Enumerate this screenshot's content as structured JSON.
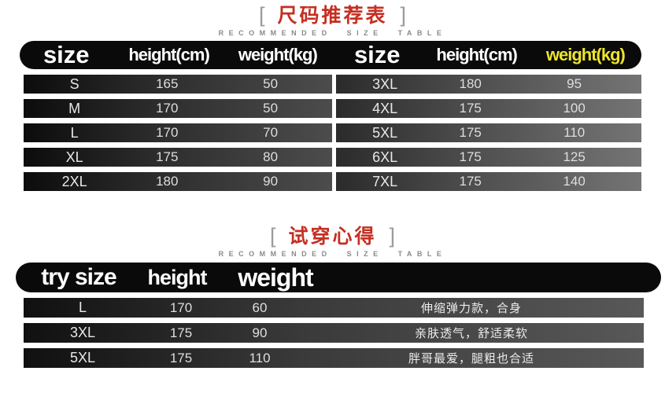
{
  "colors": {
    "accent_red": "#c52f22",
    "accent_yellow": "#ece32c",
    "band_black": "#0a0a0a",
    "subtitle_gray": "#8a8a8a"
  },
  "table1": {
    "bracket_left": "[",
    "bracket_right": "]",
    "title": "尺码推荐表",
    "subtitle": "RECOMMENDED SIZE TABLE",
    "header_left": {
      "size": "size",
      "height": "height(cm)",
      "weight": "weight(kg)"
    },
    "header_right": {
      "size": "size",
      "height": "height(cm)",
      "weight": "weight(kg)"
    },
    "rows_left": [
      {
        "size": "S",
        "height": "165",
        "weight": "50"
      },
      {
        "size": "M",
        "height": "170",
        "weight": "50"
      },
      {
        "size": "L",
        "height": "170",
        "weight": "70"
      },
      {
        "size": "XL",
        "height": "175",
        "weight": "80"
      },
      {
        "size": "2XL",
        "height": "180",
        "weight": "90"
      }
    ],
    "rows_right": [
      {
        "size": "3XL",
        "height": "180",
        "weight": "95"
      },
      {
        "size": "4XL",
        "height": "175",
        "weight": "100"
      },
      {
        "size": "5XL",
        "height": "175",
        "weight": "110"
      },
      {
        "size": "6XL",
        "height": "175",
        "weight": "125"
      },
      {
        "size": "7XL",
        "height": "175",
        "weight": "140"
      }
    ]
  },
  "table2": {
    "bracket_left": "[",
    "bracket_right": "]",
    "title": "试穿心得",
    "subtitle": "RECOMMENDED SIZE TABLE",
    "header": {
      "try_size": "try size",
      "height": "height",
      "weight": "weight"
    },
    "rows": [
      {
        "size": "L",
        "height": "170",
        "weight": "60",
        "note": "伸缩弹力款，合身"
      },
      {
        "size": "3XL",
        "height": "175",
        "weight": "90",
        "note": "亲肤透气，舒适柔软"
      },
      {
        "size": "5XL",
        "height": "175",
        "weight": "110",
        "note": "胖哥最爱，腿粗也合适"
      }
    ]
  }
}
